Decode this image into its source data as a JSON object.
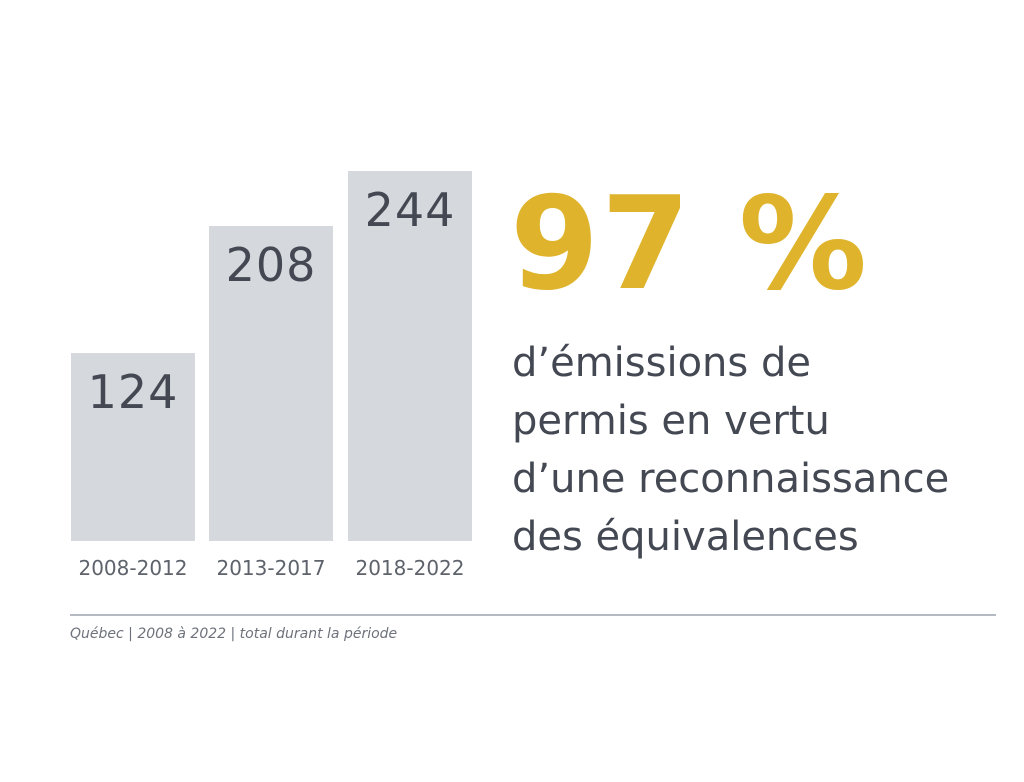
{
  "chart_data": {
    "type": "bar",
    "categories": [
      "2008-2012",
      "2013-2017",
      "2018-2022"
    ],
    "values": [
      124,
      208,
      244
    ],
    "title": "",
    "xlabel": "",
    "ylabel": "",
    "ylim": [
      0,
      244
    ],
    "grid": false
  },
  "headline": {
    "value": "97 %",
    "lines": [
      "d’émissions de",
      "permis en vertu",
      "d’une reconnaissance",
      "des équivalences"
    ]
  },
  "footnote": "Québec | 2008 à 2022 | total durant la période",
  "colors": {
    "bar": "#d5d8dc",
    "accent": "#dfb42c",
    "text": "#434852"
  }
}
